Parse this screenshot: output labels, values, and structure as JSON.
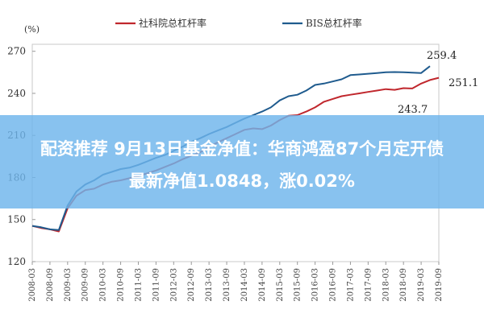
{
  "banner": {
    "line1": "配资推荐 9月13日基金净值：华商鸿盈87个月定开债",
    "line2": "最新净值1.0848，涨0.02%"
  },
  "chart_data": {
    "type": "line",
    "ylabel": "(%)",
    "ylim": [
      120,
      275
    ],
    "yticks": [
      120,
      150,
      180,
      210,
      240,
      270
    ],
    "x": [
      "2008-03",
      "2008-06",
      "2008-09",
      "2008-12",
      "2009-03",
      "2009-06",
      "2009-09",
      "2009-12",
      "2010-03",
      "2010-06",
      "2010-09",
      "2010-12",
      "2011-03",
      "2011-06",
      "2011-09",
      "2011-12",
      "2012-03",
      "2012-06",
      "2012-09",
      "2012-12",
      "2013-03",
      "2013-06",
      "2013-09",
      "2013-12",
      "2014-03",
      "2014-06",
      "2014-09",
      "2014-12",
      "2015-03",
      "2015-06",
      "2015-09",
      "2015-12",
      "2016-03",
      "2016-06",
      "2016-09",
      "2016-12",
      "2017-03",
      "2017-06",
      "2017-09",
      "2017-12",
      "2018-03",
      "2018-06",
      "2018-09",
      "2018-12",
      "2019-03",
      "2019-06",
      "2019-09"
    ],
    "xtick_labels": [
      "2008-03",
      "2008-09",
      "2009-03",
      "2009-09",
      "2010-03",
      "2010-09",
      "2011-03",
      "2011-09",
      "2012-03",
      "2012-09",
      "2013-03",
      "2013-09",
      "2014-03",
      "2014-09",
      "2015-03",
      "2015-09",
      "2016-03",
      "2016-09",
      "2017-03",
      "2017-09",
      "2018-03",
      "2018-09",
      "2019-03",
      "2019-09"
    ],
    "series": [
      {
        "name": "社科院总杠杆率",
        "color": "#c0272d",
        "values": [
          145.5,
          144,
          143,
          141.5,
          158,
          167,
          171,
          172,
          175,
          177,
          178,
          179.5,
          181,
          183,
          185,
          187.5,
          190,
          193,
          195.5,
          198,
          202,
          205,
          208,
          211,
          214,
          215,
          214.5,
          217,
          221,
          224,
          224.5,
          227,
          230,
          234,
          236,
          238,
          239,
          240,
          241,
          242,
          243,
          242.5,
          243.7,
          243.5,
          247,
          249.5,
          251.1
        ]
      },
      {
        "name": "BIS总杠杆率",
        "color": "#1f5b8e",
        "values": [
          145.5,
          144.5,
          143,
          142.5,
          160,
          170,
          175,
          178,
          182,
          184,
          186,
          187,
          189,
          191.5,
          194,
          196,
          199,
          202,
          205.5,
          208,
          211,
          213.5,
          216,
          219,
          222,
          224.5,
          227,
          230,
          235,
          238,
          239,
          242,
          246,
          247,
          248.5,
          250,
          253,
          253.5,
          254,
          254.5,
          255,
          255.2,
          255,
          254.8,
          254.5,
          259.4,
          null
        ]
      }
    ],
    "annotations": [
      "259.4",
      "251.1",
      "243.7"
    ]
  }
}
